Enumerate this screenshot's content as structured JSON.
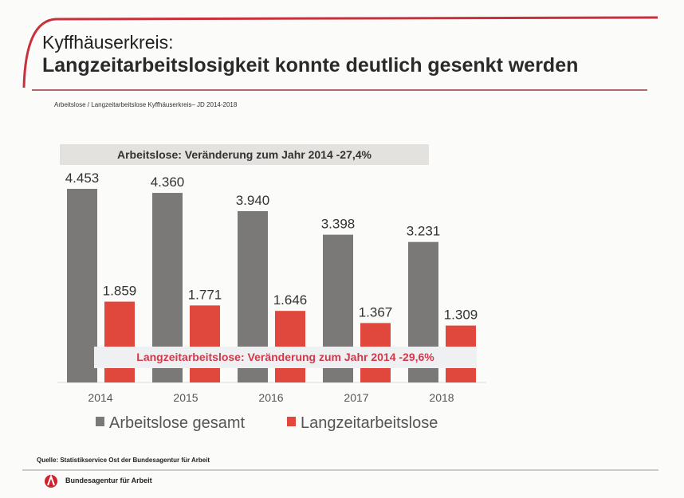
{
  "header": {
    "kicker": "Kyffhäuserkreis:",
    "title": "Langzeitarbeitslosigkeit konnte deutlich gesenkt werden",
    "subtitle": "Arbeitslose / Langzeitarbeitslose  Kyffhäuserkreis– JD 2014-2018"
  },
  "footer": {
    "source": "Quelle: Statistikservice Ost der Bundesagentur für Arbeit",
    "brand": "Bundesagentur für Arbeit"
  },
  "colors": {
    "accent": "#c8303c",
    "gray": "#7b7977",
    "red": "#e0483e"
  },
  "chart_data": {
    "type": "bar",
    "categories": [
      "2014",
      "2015",
      "2016",
      "2017",
      "2018"
    ],
    "series": [
      {
        "name": "Arbeitslose gesamt",
        "values": [
          4453,
          4360,
          3940,
          3398,
          3231
        ],
        "labels": [
          "4.453",
          "4.360",
          "3.940",
          "3.398",
          "3.231"
        ]
      },
      {
        "name": "Langzeitarbeitslose",
        "values": [
          1859,
          1771,
          1646,
          1367,
          1309
        ],
        "labels": [
          "1.859",
          "1.771",
          "1.646",
          "1.367",
          "1.309"
        ]
      }
    ],
    "annotations": [
      "Arbeitslose: Veränderung zum Jahr 2014 -27,4%",
      "Langzeitarbeitslose: Veränderung zum Jahr 2014 -29,6%"
    ],
    "legend": "bottom",
    "grid": false
  }
}
